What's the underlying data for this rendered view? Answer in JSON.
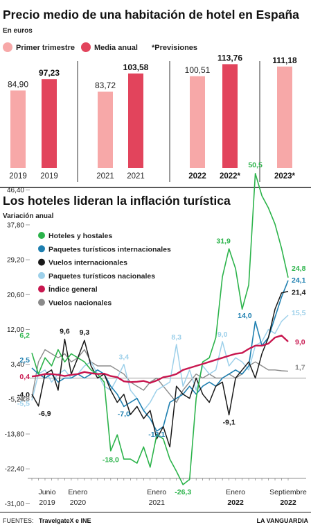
{
  "colors": {
    "bar_light": "#f7a8a8",
    "bar_dark": "#e2445c",
    "hoteles": "#2bb34a",
    "paq_int": "#1e7fb0",
    "vuelos_int": "#1a1a1a",
    "paq_nac": "#9dd0ea",
    "indice": "#c8174f",
    "vuelos_nac": "#8a8a8a"
  },
  "chart_data": [
    {
      "type": "bar",
      "title": "Precio medio de una habitación de hotel en España",
      "subtitle": "En euros",
      "legend": [
        "Primer trimestre",
        "Media anual",
        "*Previsiones"
      ],
      "groups": [
        {
          "bars": [
            {
              "category": "2019",
              "series": "Primer trimestre",
              "value": 84.9,
              "value_label": "84,90",
              "bold": false
            },
            {
              "category": "2019",
              "series": "Media anual",
              "value": 97.23,
              "value_label": "97,23",
              "bold": true
            }
          ]
        },
        {
          "bars": [
            {
              "category": "2021",
              "series": "Primer trimestre",
              "value": 83.72,
              "value_label": "83,72",
              "bold": false
            },
            {
              "category": "2021",
              "series": "Media anual",
              "value": 103.58,
              "value_label": "103,58",
              "bold": true
            }
          ]
        },
        {
          "bars": [
            {
              "category": "2022",
              "series": "Primer trimestre",
              "value": 100.51,
              "value_label": "100,51",
              "bold": false
            },
            {
              "category": "2022*",
              "series": "Media anual",
              "value": 113.76,
              "value_label": "113,76",
              "bold": true
            }
          ]
        },
        {
          "bars": [
            {
              "category": "2023*",
              "series": "Primer trimestre",
              "value": 111.18,
              "value_label": "111,18",
              "bold": true
            }
          ]
        }
      ],
      "bold_categories": [
        "2022",
        "2022*",
        "2023*"
      ],
      "ylim": [
        0,
        120
      ]
    },
    {
      "type": "line",
      "title": "Los hoteles lideran la inflación turística",
      "subtitle": "Variación anual",
      "ylim": [
        -36,
        50
      ],
      "yticks": [
        46.4,
        37.8,
        29.2,
        20.6,
        12.0,
        3.4,
        -5.2,
        -13.8,
        -22.4,
        -31.0
      ],
      "ytick_labels": [
        "46,40",
        "37,80",
        "29,20",
        "20,60",
        "12,00",
        "3,40",
        "-5,20",
        "-13,80",
        "-22,40",
        "-31,00"
      ],
      "x_start": "2019-06",
      "n_points": 40,
      "xticks": [
        {
          "index": 0,
          "line1": "Junio",
          "line2": "2019",
          "bold2": false
        },
        {
          "index": 7,
          "line1": "Enero",
          "line2": "2020",
          "bold2": false
        },
        {
          "index": 19,
          "line1": "Enero",
          "line2": "2021",
          "bold2": false
        },
        {
          "index": 31,
          "line1": "Enero",
          "line2": "2022",
          "bold2": true
        },
        {
          "index": 39,
          "line1": "Septiembre",
          "line2": "2022",
          "bold2": true
        }
      ],
      "series": [
        {
          "key": "vuelos_nac",
          "name": "Vuelos nacionales",
          "values": [
            -4.8,
            4,
            7,
            6,
            5,
            6,
            4,
            5,
            7,
            4,
            3,
            3,
            3,
            2,
            1,
            -1,
            -2,
            -3,
            -1,
            0,
            -2,
            -4,
            -6,
            -3,
            -1,
            1,
            0,
            1,
            0,
            0,
            1,
            0,
            1,
            3,
            4,
            3,
            2,
            2,
            1.8,
            1.7
          ]
        },
        {
          "key": "paq_nac",
          "name": "Paquetes turísticos nacionales",
          "values": [
            -5.5,
            1,
            2,
            -1,
            1,
            2,
            0,
            1,
            3,
            4,
            1,
            -2,
            -3,
            0,
            3.4,
            -3,
            -5,
            -8,
            -6,
            -3,
            -2,
            -1,
            8.3,
            -2,
            2,
            -3,
            3,
            1,
            2,
            9.0,
            3,
            5,
            4,
            2,
            8,
            9,
            12,
            11,
            14,
            15.5
          ]
        },
        {
          "key": "paq_int",
          "name": "Paquetes turísticos internacionales",
          "values": [
            2.5,
            1,
            0,
            1,
            -1,
            0,
            0,
            1,
            0,
            1,
            2,
            1,
            -2,
            -4,
            -7,
            -6,
            -5,
            -8,
            -10,
            -13.1,
            -12,
            -6,
            -5,
            -4,
            -2,
            -4,
            -2,
            -1,
            -2,
            0,
            1,
            2,
            1,
            3,
            14.0,
            8,
            10,
            15,
            20,
            24.1
          ]
        },
        {
          "key": "vuelos_int",
          "name": "Vuelos internacionales",
          "values": [
            -4.0,
            -6.9,
            1,
            2,
            -3,
            9.6,
            1,
            5,
            9.3,
            3,
            0,
            1,
            -3,
            -6,
            -4,
            -9,
            -7,
            -10,
            -8,
            -15,
            -12,
            -17,
            -2,
            -4,
            -5,
            0,
            -4,
            -6,
            -2,
            -1,
            -9.1,
            0,
            2,
            4,
            0,
            6,
            10,
            17,
            21,
            21.4
          ]
        },
        {
          "key": "hoteles",
          "name": "Hoteles y hostales",
          "values": [
            6.2,
            1,
            5,
            3,
            7,
            4,
            6,
            5,
            4,
            2,
            1,
            -1,
            -18.0,
            -14,
            -20,
            -20,
            -21,
            -17,
            -22,
            -14,
            -15,
            -20,
            -23,
            -26.3,
            -25,
            -5,
            4,
            5,
            10,
            25,
            31.9,
            27,
            17,
            23,
            50.5,
            45,
            42,
            38,
            32,
            24.8
          ]
        },
        {
          "key": "indice",
          "name": "Índice general",
          "values": [
            0.4,
            0.6,
            1,
            1,
            0.8,
            0.5,
            0.8,
            1,
            1.5,
            1.2,
            1,
            1.1,
            0.5,
            0.2,
            -0.8,
            -1,
            -0.9,
            -0.7,
            -1.2,
            -0.6,
            0.2,
            0.5,
            1,
            2,
            2.5,
            3,
            3.5,
            4,
            4.5,
            5,
            5.5,
            6,
            6.2,
            7.2,
            8,
            8,
            8.5,
            10,
            10.5,
            9.0
          ]
        }
      ],
      "legend": [
        {
          "key": "hoteles",
          "label": "Hoteles y hostales"
        },
        {
          "key": "paq_int",
          "label": "Paquetes turísticos internacionales"
        },
        {
          "key": "vuelos_int",
          "label": "Vuelos internacionales"
        },
        {
          "key": "paq_nac",
          "label": "Paquetes turísticos nacionales"
        },
        {
          "key": "indice",
          "label": "Índice general"
        },
        {
          "key": "vuelos_nac",
          "label": "Vuelos nacionales"
        }
      ],
      "annotations": [
        {
          "text": "6,2",
          "key": "hoteles",
          "index": 0,
          "dx": -3,
          "dy": -22,
          "anchor": "end"
        },
        {
          "text": "2,5",
          "key": "paq_int",
          "index": 0,
          "dx": -3,
          "dy": -8,
          "anchor": "end"
        },
        {
          "text": "0,4",
          "key": "indice",
          "index": 0,
          "dx": -3,
          "dy": 4,
          "anchor": "end"
        },
        {
          "text": "-4,0",
          "key": "vuelos_int",
          "index": 0,
          "dx": -3,
          "dy": 4,
          "anchor": "end"
        },
        {
          "text": "-4,8",
          "key": "vuelos_nac",
          "index": 0,
          "dx": -3,
          "dy": 5,
          "anchor": "end"
        },
        {
          "text": "-5,5",
          "key": "paq_nac",
          "index": 0,
          "dx": -3,
          "dy": 8,
          "anchor": "end"
        },
        {
          "text": "-6,9",
          "key": "vuelos_int",
          "index": 1,
          "dx": 0,
          "dy": 14,
          "anchor": "start"
        },
        {
          "text": "9,6",
          "key": "vuelos_int",
          "index": 5,
          "dx": 0,
          "dy": -8,
          "anchor": "middle"
        },
        {
          "text": "9,3",
          "key": "vuelos_int",
          "index": 8,
          "dx": 0,
          "dy": -8,
          "anchor": "middle"
        },
        {
          "text": "3,4",
          "key": "paq_nac",
          "index": 14,
          "dx": 0,
          "dy": -7,
          "anchor": "middle"
        },
        {
          "text": "-18,0",
          "key": "hoteles",
          "index": 12,
          "dx": 0,
          "dy": 16,
          "anchor": "middle"
        },
        {
          "text": "-7,0",
          "key": "paq_int",
          "index": 14,
          "dx": 0,
          "dy": 14,
          "anchor": "middle"
        },
        {
          "text": "-13,1",
          "key": "paq_int",
          "index": 19,
          "dx": 0,
          "dy": 8,
          "anchor": "middle"
        },
        {
          "text": "8,3",
          "key": "paq_nac",
          "index": 22,
          "dx": 0,
          "dy": -7,
          "anchor": "middle"
        },
        {
          "text": "-26,3",
          "key": "hoteles",
          "index": 23,
          "dx": 0,
          "dy": 14,
          "anchor": "middle"
        },
        {
          "text": "31,9",
          "key": "hoteles",
          "index": 30,
          "dx": -8,
          "dy": -8,
          "anchor": "middle"
        },
        {
          "text": "9,0",
          "key": "paq_nac",
          "index": 29,
          "dx": 0,
          "dy": -7,
          "anchor": "middle"
        },
        {
          "text": "-9,1",
          "key": "vuelos_int",
          "index": 30,
          "dx": 0,
          "dy": 14,
          "anchor": "middle"
        },
        {
          "text": "14,0",
          "key": "paq_int",
          "index": 34,
          "dx": -5,
          "dy": -5,
          "anchor": "end"
        },
        {
          "text": "50,5",
          "key": "hoteles",
          "index": 34,
          "dx": 0,
          "dy": -9,
          "anchor": "middle"
        },
        {
          "text": "24,8",
          "key": "hoteles",
          "index": 39,
          "dx": 5,
          "dy": -10,
          "anchor": "start"
        },
        {
          "text": "24,1",
          "key": "paq_int",
          "index": 39,
          "dx": 5,
          "dy": 3,
          "anchor": "start"
        },
        {
          "text": "21,4",
          "key": "vuelos_int",
          "index": 39,
          "dx": 5,
          "dy": 5,
          "anchor": "start"
        },
        {
          "text": "15,5",
          "key": "paq_nac",
          "index": 39,
          "dx": 5,
          "dy": 0,
          "anchor": "start"
        },
        {
          "text": "9,0",
          "key": "indice",
          "index": 39,
          "dx": 10,
          "dy": 4,
          "anchor": "start"
        },
        {
          "text": "1,7",
          "key": "vuelos_nac",
          "index": 39,
          "dx": 10,
          "dy": -2,
          "anchor": "start"
        }
      ]
    }
  ],
  "footer": {
    "label": "FUENTES:",
    "sources": "TravelgateX e INE",
    "brand": "LA VANGUARDIA"
  }
}
